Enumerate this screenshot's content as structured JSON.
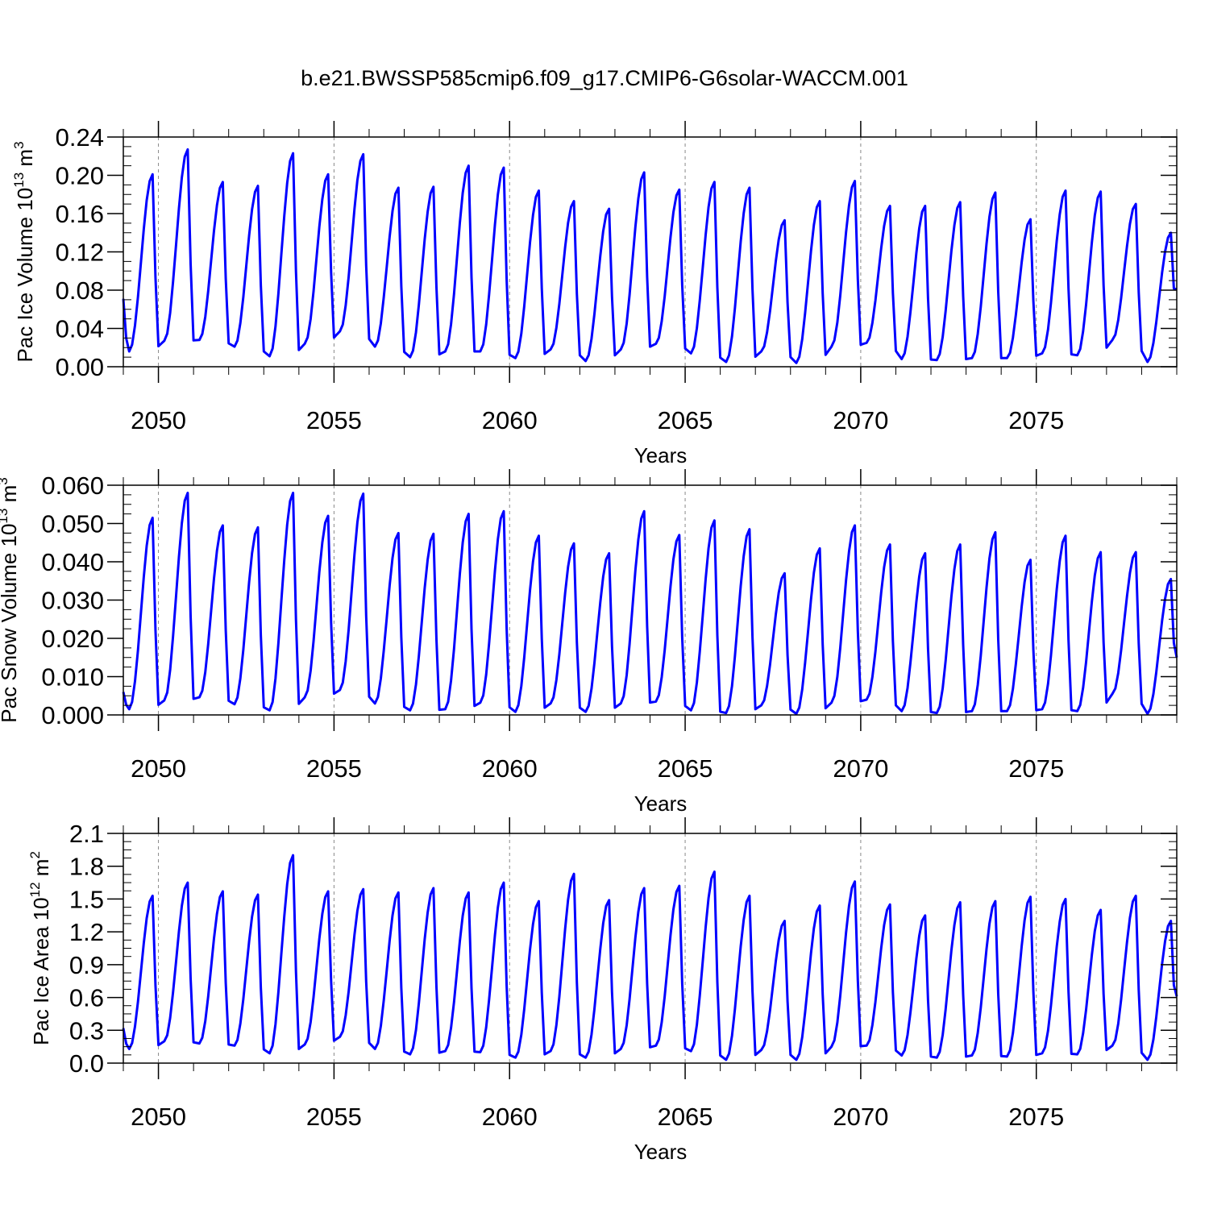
{
  "title": "b.e21.BWSSP585cmip6.f09_g17.CMIP6-G6solar-WACCM.001",
  "chart_data": [
    {
      "type": "line",
      "ylabel_main": "Pac Ice Volume 10",
      "ylabel_exp": "13",
      "ylabel_unit": " m",
      "ylabel_unit_exp": "3",
      "xlabel": "Years",
      "xlim": [
        2049,
        2079
      ],
      "ylim": [
        0,
        0.24
      ],
      "yticks": [
        "0.00",
        "0.04",
        "0.08",
        "0.12",
        "0.16",
        "0.20",
        "0.24"
      ],
      "xticks": [
        "2050",
        "2055",
        "2060",
        "2065",
        "2070",
        "2075"
      ],
      "color": "#0000ff",
      "annual": {
        "years": [
          2049,
          2050,
          2051,
          2052,
          2053,
          2054,
          2055,
          2056,
          2057,
          2058,
          2059,
          2060,
          2061,
          2062,
          2063,
          2064,
          2065,
          2066,
          2067,
          2068,
          2069,
          2070,
          2071,
          2072,
          2073,
          2074,
          2075,
          2076,
          2077,
          2078
        ],
        "min": [
          0.016,
          0.027,
          0.028,
          0.021,
          0.011,
          0.024,
          0.037,
          0.021,
          0.01,
          0.016,
          0.016,
          0.009,
          0.018,
          0.006,
          0.018,
          0.024,
          0.014,
          0.005,
          0.016,
          0.004,
          0.021,
          0.025,
          0.008,
          0.007,
          0.009,
          0.009,
          0.014,
          0.012,
          0.028,
          0.005
        ],
        "max": [
          0.201,
          0.227,
          0.193,
          0.189,
          0.223,
          0.201,
          0.222,
          0.187,
          0.188,
          0.21,
          0.208,
          0.184,
          0.173,
          0.165,
          0.203,
          0.185,
          0.193,
          0.187,
          0.153,
          0.173,
          0.194,
          0.168,
          0.168,
          0.172,
          0.182,
          0.154,
          0.184,
          0.183,
          0.17,
          0.14
        ],
        "start": 0.071,
        "end": 0.081
      }
    },
    {
      "type": "line",
      "ylabel_main": "Pac Snow Volume 10",
      "ylabel_exp": "13",
      "ylabel_unit": " m",
      "ylabel_unit_exp": "3",
      "xlabel": "Years",
      "xlim": [
        2049,
        2079
      ],
      "ylim": [
        0,
        0.06
      ],
      "yticks": [
        "0.000",
        "0.010",
        "0.020",
        "0.030",
        "0.040",
        "0.050",
        "0.060"
      ],
      "xticks": [
        "2050",
        "2055",
        "2060",
        "2065",
        "2070",
        "2075"
      ],
      "color": "#0000ff",
      "annual": {
        "years": [
          2049,
          2050,
          2051,
          2052,
          2053,
          2054,
          2055,
          2056,
          2057,
          2058,
          2059,
          2060,
          2061,
          2062,
          2063,
          2064,
          2065,
          2066,
          2067,
          2068,
          2069,
          2070,
          2071,
          2072,
          2073,
          2074,
          2075,
          2076,
          2077,
          2078
        ],
        "min": [
          0.0015,
          0.0038,
          0.0046,
          0.0028,
          0.0012,
          0.0046,
          0.0065,
          0.003,
          0.0012,
          0.0015,
          0.0032,
          0.0008,
          0.003,
          0.0008,
          0.003,
          0.0035,
          0.0012,
          0.0005,
          0.0025,
          0.0003,
          0.0032,
          0.004,
          0.001,
          0.0005,
          0.001,
          0.001,
          0.0015,
          0.001,
          0.0055,
          0.0003
        ],
        "max": [
          0.0515,
          0.058,
          0.0495,
          0.049,
          0.058,
          0.052,
          0.0578,
          0.0475,
          0.0473,
          0.0525,
          0.0532,
          0.0468,
          0.0448,
          0.0422,
          0.0532,
          0.047,
          0.0508,
          0.0485,
          0.037,
          0.0435,
          0.0495,
          0.0445,
          0.0422,
          0.0445,
          0.0477,
          0.0405,
          0.0468,
          0.0425,
          0.0425,
          0.0355
        ],
        "start": 0.006,
        "end": 0.015
      }
    },
    {
      "type": "line",
      "ylabel_main": "Pac Ice Area 10",
      "ylabel_exp": "12",
      "ylabel_unit": " m",
      "ylabel_unit_exp": "2",
      "xlabel": "Years",
      "xlim": [
        2049,
        2079
      ],
      "ylim": [
        0,
        2.1
      ],
      "yticks": [
        "0.0",
        "0.3",
        "0.6",
        "0.9",
        "1.2",
        "1.5",
        "1.8",
        "2.1"
      ],
      "xticks": [
        "2050",
        "2055",
        "2060",
        "2065",
        "2070",
        "2075"
      ],
      "color": "#0000ff",
      "annual": {
        "years": [
          2049,
          2050,
          2051,
          2052,
          2053,
          2054,
          2055,
          2056,
          2057,
          2058,
          2059,
          2060,
          2061,
          2062,
          2063,
          2064,
          2065,
          2066,
          2067,
          2068,
          2069,
          2070,
          2071,
          2072,
          2073,
          2074,
          2075,
          2076,
          2077,
          2078
        ],
        "min": [
          0.13,
          0.2,
          0.18,
          0.16,
          0.09,
          0.17,
          0.24,
          0.13,
          0.08,
          0.11,
          0.1,
          0.05,
          0.11,
          0.05,
          0.13,
          0.16,
          0.11,
          0.03,
          0.12,
          0.03,
          0.15,
          0.16,
          0.07,
          0.05,
          0.07,
          0.06,
          0.09,
          0.08,
          0.16,
          0.03
        ],
        "max": [
          1.53,
          1.65,
          1.57,
          1.54,
          1.9,
          1.57,
          1.59,
          1.56,
          1.6,
          1.56,
          1.65,
          1.48,
          1.73,
          1.49,
          1.6,
          1.62,
          1.75,
          1.53,
          1.3,
          1.44,
          1.66,
          1.45,
          1.35,
          1.47,
          1.48,
          1.52,
          1.5,
          1.4,
          1.53,
          1.3
        ],
        "start": 0.32,
        "end": 0.61
      }
    }
  ]
}
